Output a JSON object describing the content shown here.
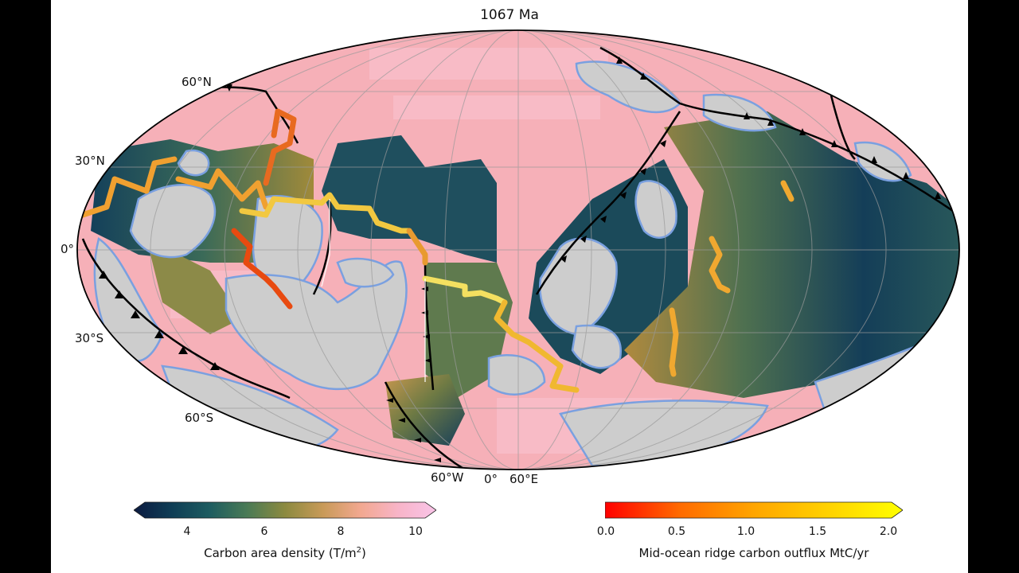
{
  "title": "1067 Ma",
  "lat_labels": [
    "60°N",
    "30°N",
    "0°",
    "30°S",
    "60°S"
  ],
  "lon_labels": [
    "60°W",
    "0°",
    "60°E"
  ],
  "colorbar_left": {
    "label_pre": "Carbon area density (T/m",
    "label_sup": "2",
    "label_post": ")",
    "ticks": [
      "4",
      "6",
      "8",
      "10"
    ],
    "range": [
      2.9,
      10
    ],
    "colors": [
      "#0b1a40",
      "#0f3d55",
      "#1d5c60",
      "#4a7a55",
      "#8c8a40",
      "#c89a58",
      "#f2a890",
      "#f8b4c8",
      "#f9c4e8"
    ]
  },
  "colorbar_right": {
    "label": "Mid-ocean ridge carbon outflux MtC/yr",
    "ticks": [
      "0.0",
      "0.5",
      "1.0",
      "1.5",
      "2.0"
    ],
    "range": [
      0,
      2
    ],
    "colors": [
      "#ff0000",
      "#ff6a00",
      "#ffa500",
      "#ffd200",
      "#ffff00"
    ]
  },
  "colors": {
    "ocean_pink": "#f6b0b8",
    "ocean_dark": "#1d4d5c",
    "ocean_olive": "#8a8a3a",
    "continent": "#cdcdcd",
    "coast": "#7aa0e0"
  }
}
